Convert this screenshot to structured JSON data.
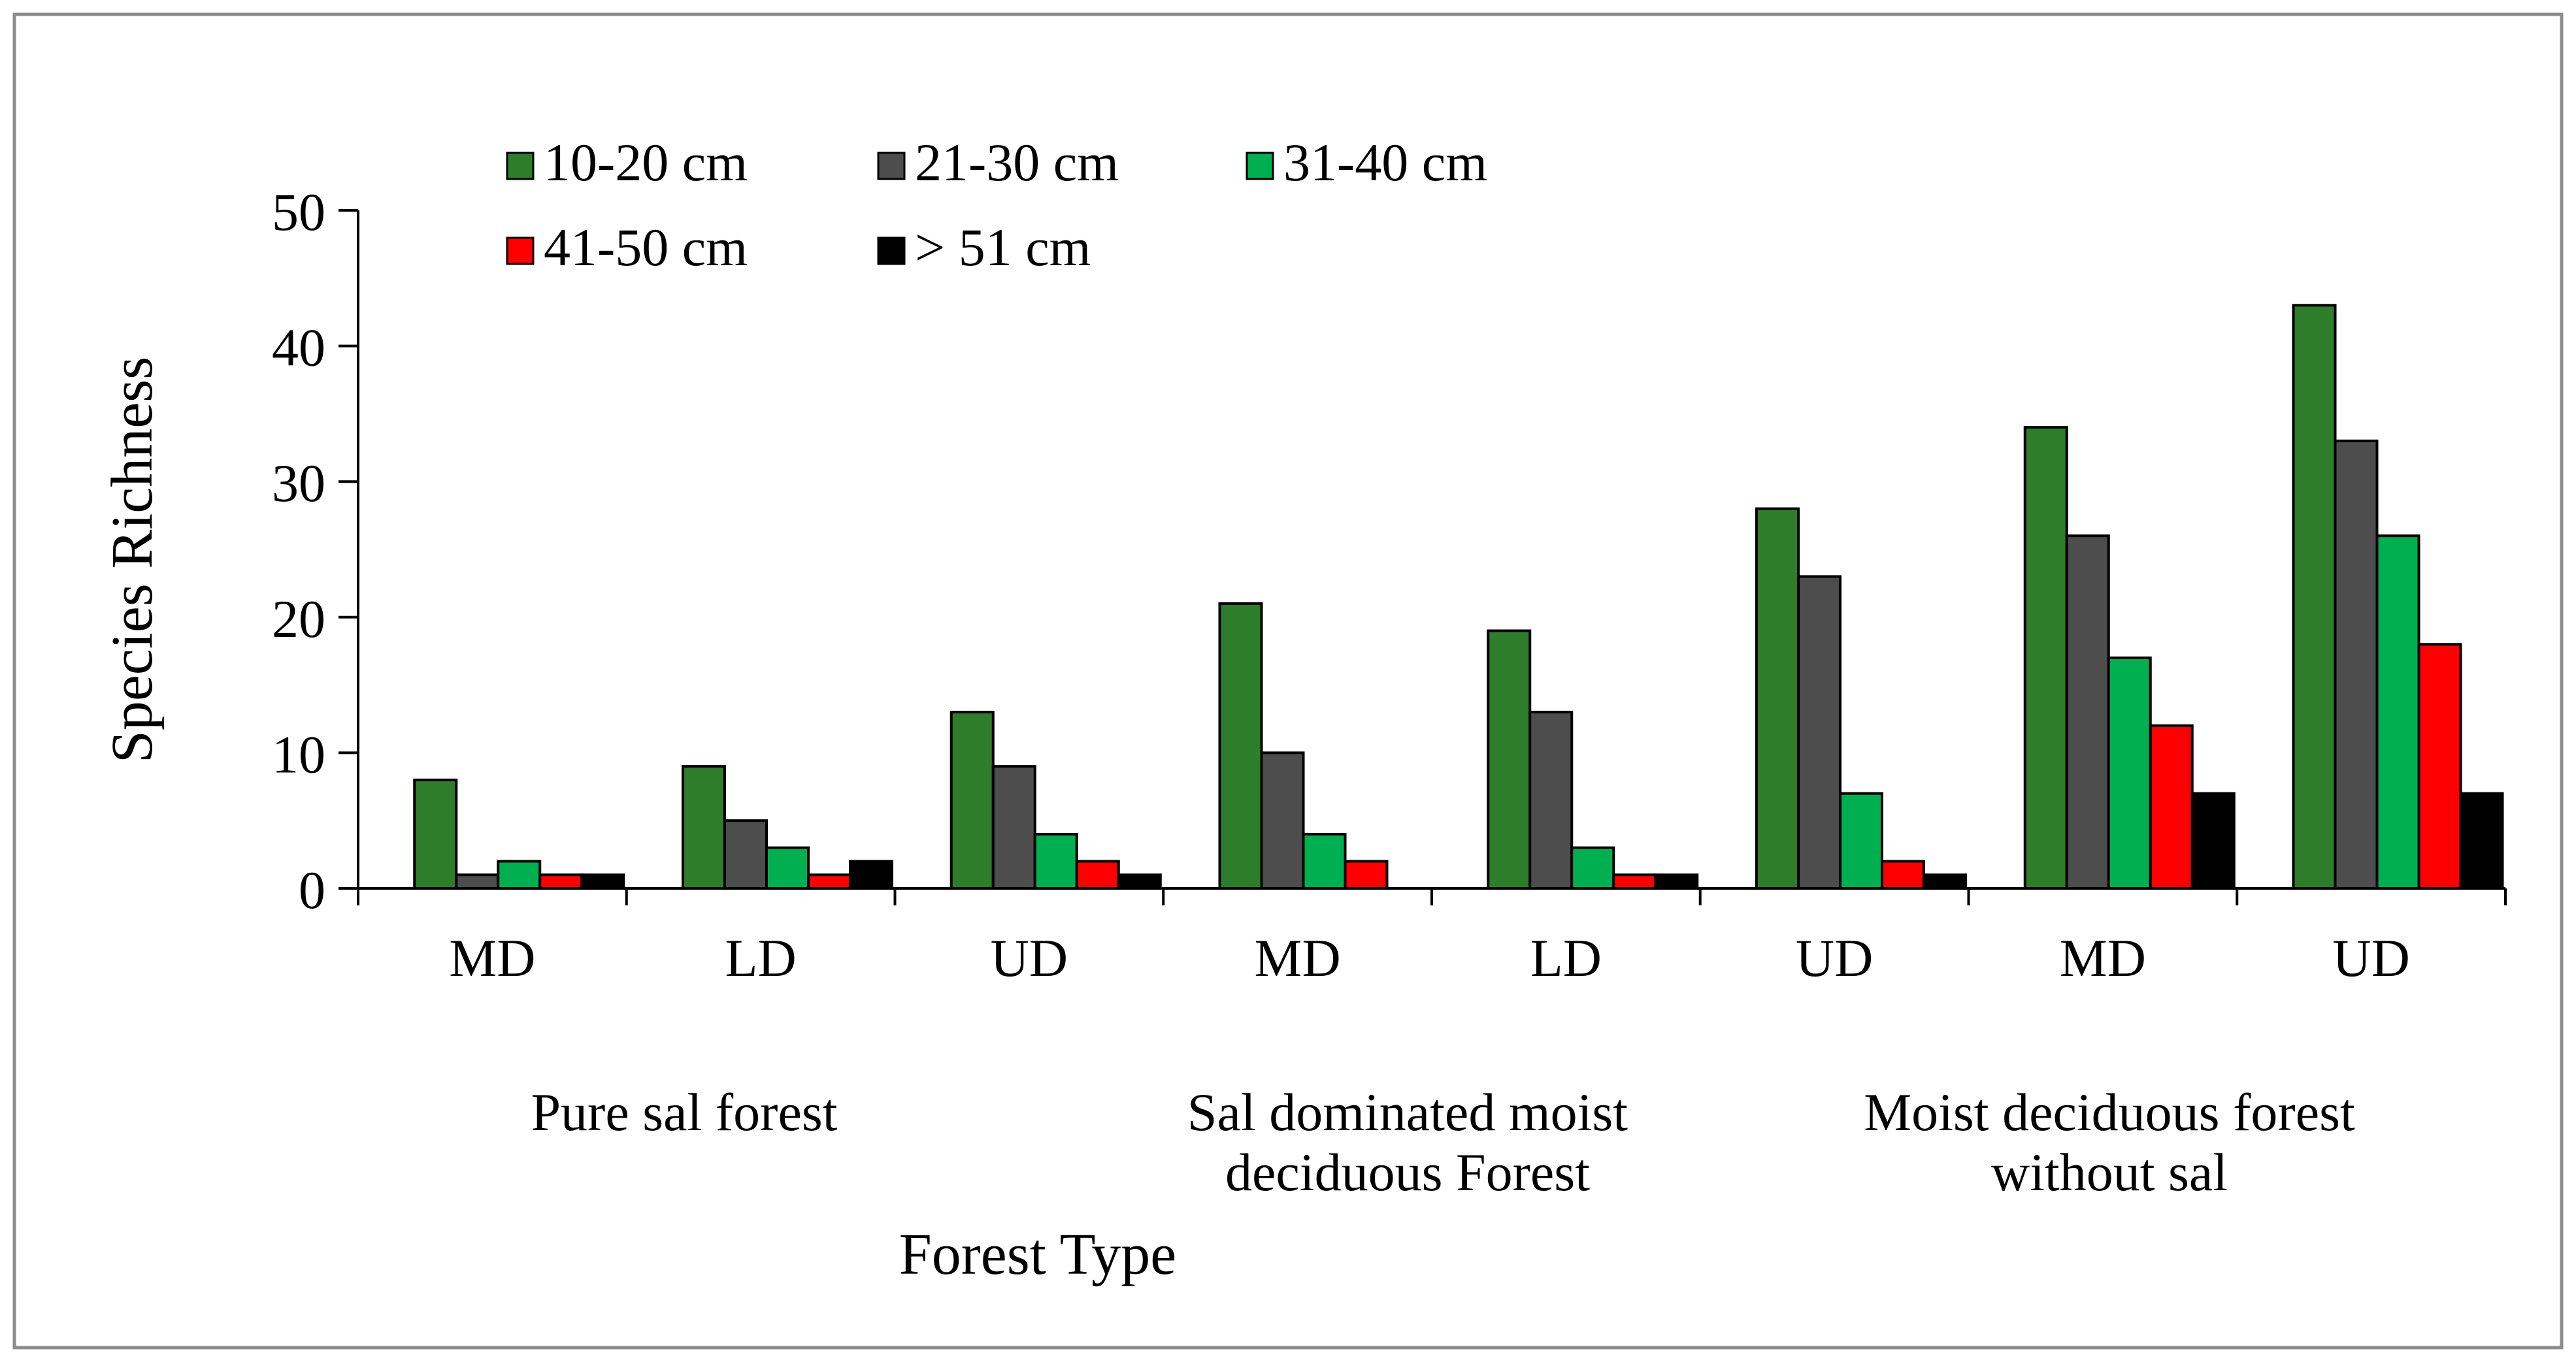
{
  "chart_data": {
    "type": "bar",
    "title": "",
    "xlabel": "Forest Type",
    "ylabel": "Species Richness",
    "ylim": [
      0,
      50
    ],
    "yticks": [
      0,
      10,
      20,
      30,
      40,
      50
    ],
    "grid": false,
    "legend_position": "top",
    "categories": [
      "MD",
      "LD",
      "UD",
      "MD",
      "LD",
      "UD",
      "MD",
      "UD"
    ],
    "groups": [
      {
        "label_lines": [
          "Pure sal forest"
        ],
        "categories": [
          0,
          1,
          2
        ]
      },
      {
        "label_lines": [
          "Sal dominated moist",
          "deciduous Forest"
        ],
        "categories": [
          3,
          4,
          5
        ]
      },
      {
        "label_lines": [
          "Moist deciduous forest",
          "without sal"
        ],
        "categories": [
          6,
          7
        ]
      }
    ],
    "series": [
      {
        "name": "10-20 cm",
        "color": "#2e7d2a",
        "values": [
          8,
          9,
          13,
          21,
          19,
          28,
          34,
          43
        ]
      },
      {
        "name": "21-30 cm",
        "color": "#4d4d4d",
        "values": [
          1,
          5,
          9,
          10,
          13,
          23,
          26,
          33
        ]
      },
      {
        "name": "31-40 cm",
        "color": "#00b050",
        "values": [
          2,
          3,
          4,
          4,
          3,
          7,
          17,
          26
        ]
      },
      {
        "name": "41-50 cm",
        "color": "#ff0000",
        "values": [
          1,
          1,
          2,
          2,
          1,
          2,
          12,
          18
        ]
      },
      {
        "name": "> 51 cm",
        "color": "#000000",
        "values": [
          1,
          2,
          1,
          0,
          1,
          1,
          7,
          7
        ]
      }
    ]
  }
}
